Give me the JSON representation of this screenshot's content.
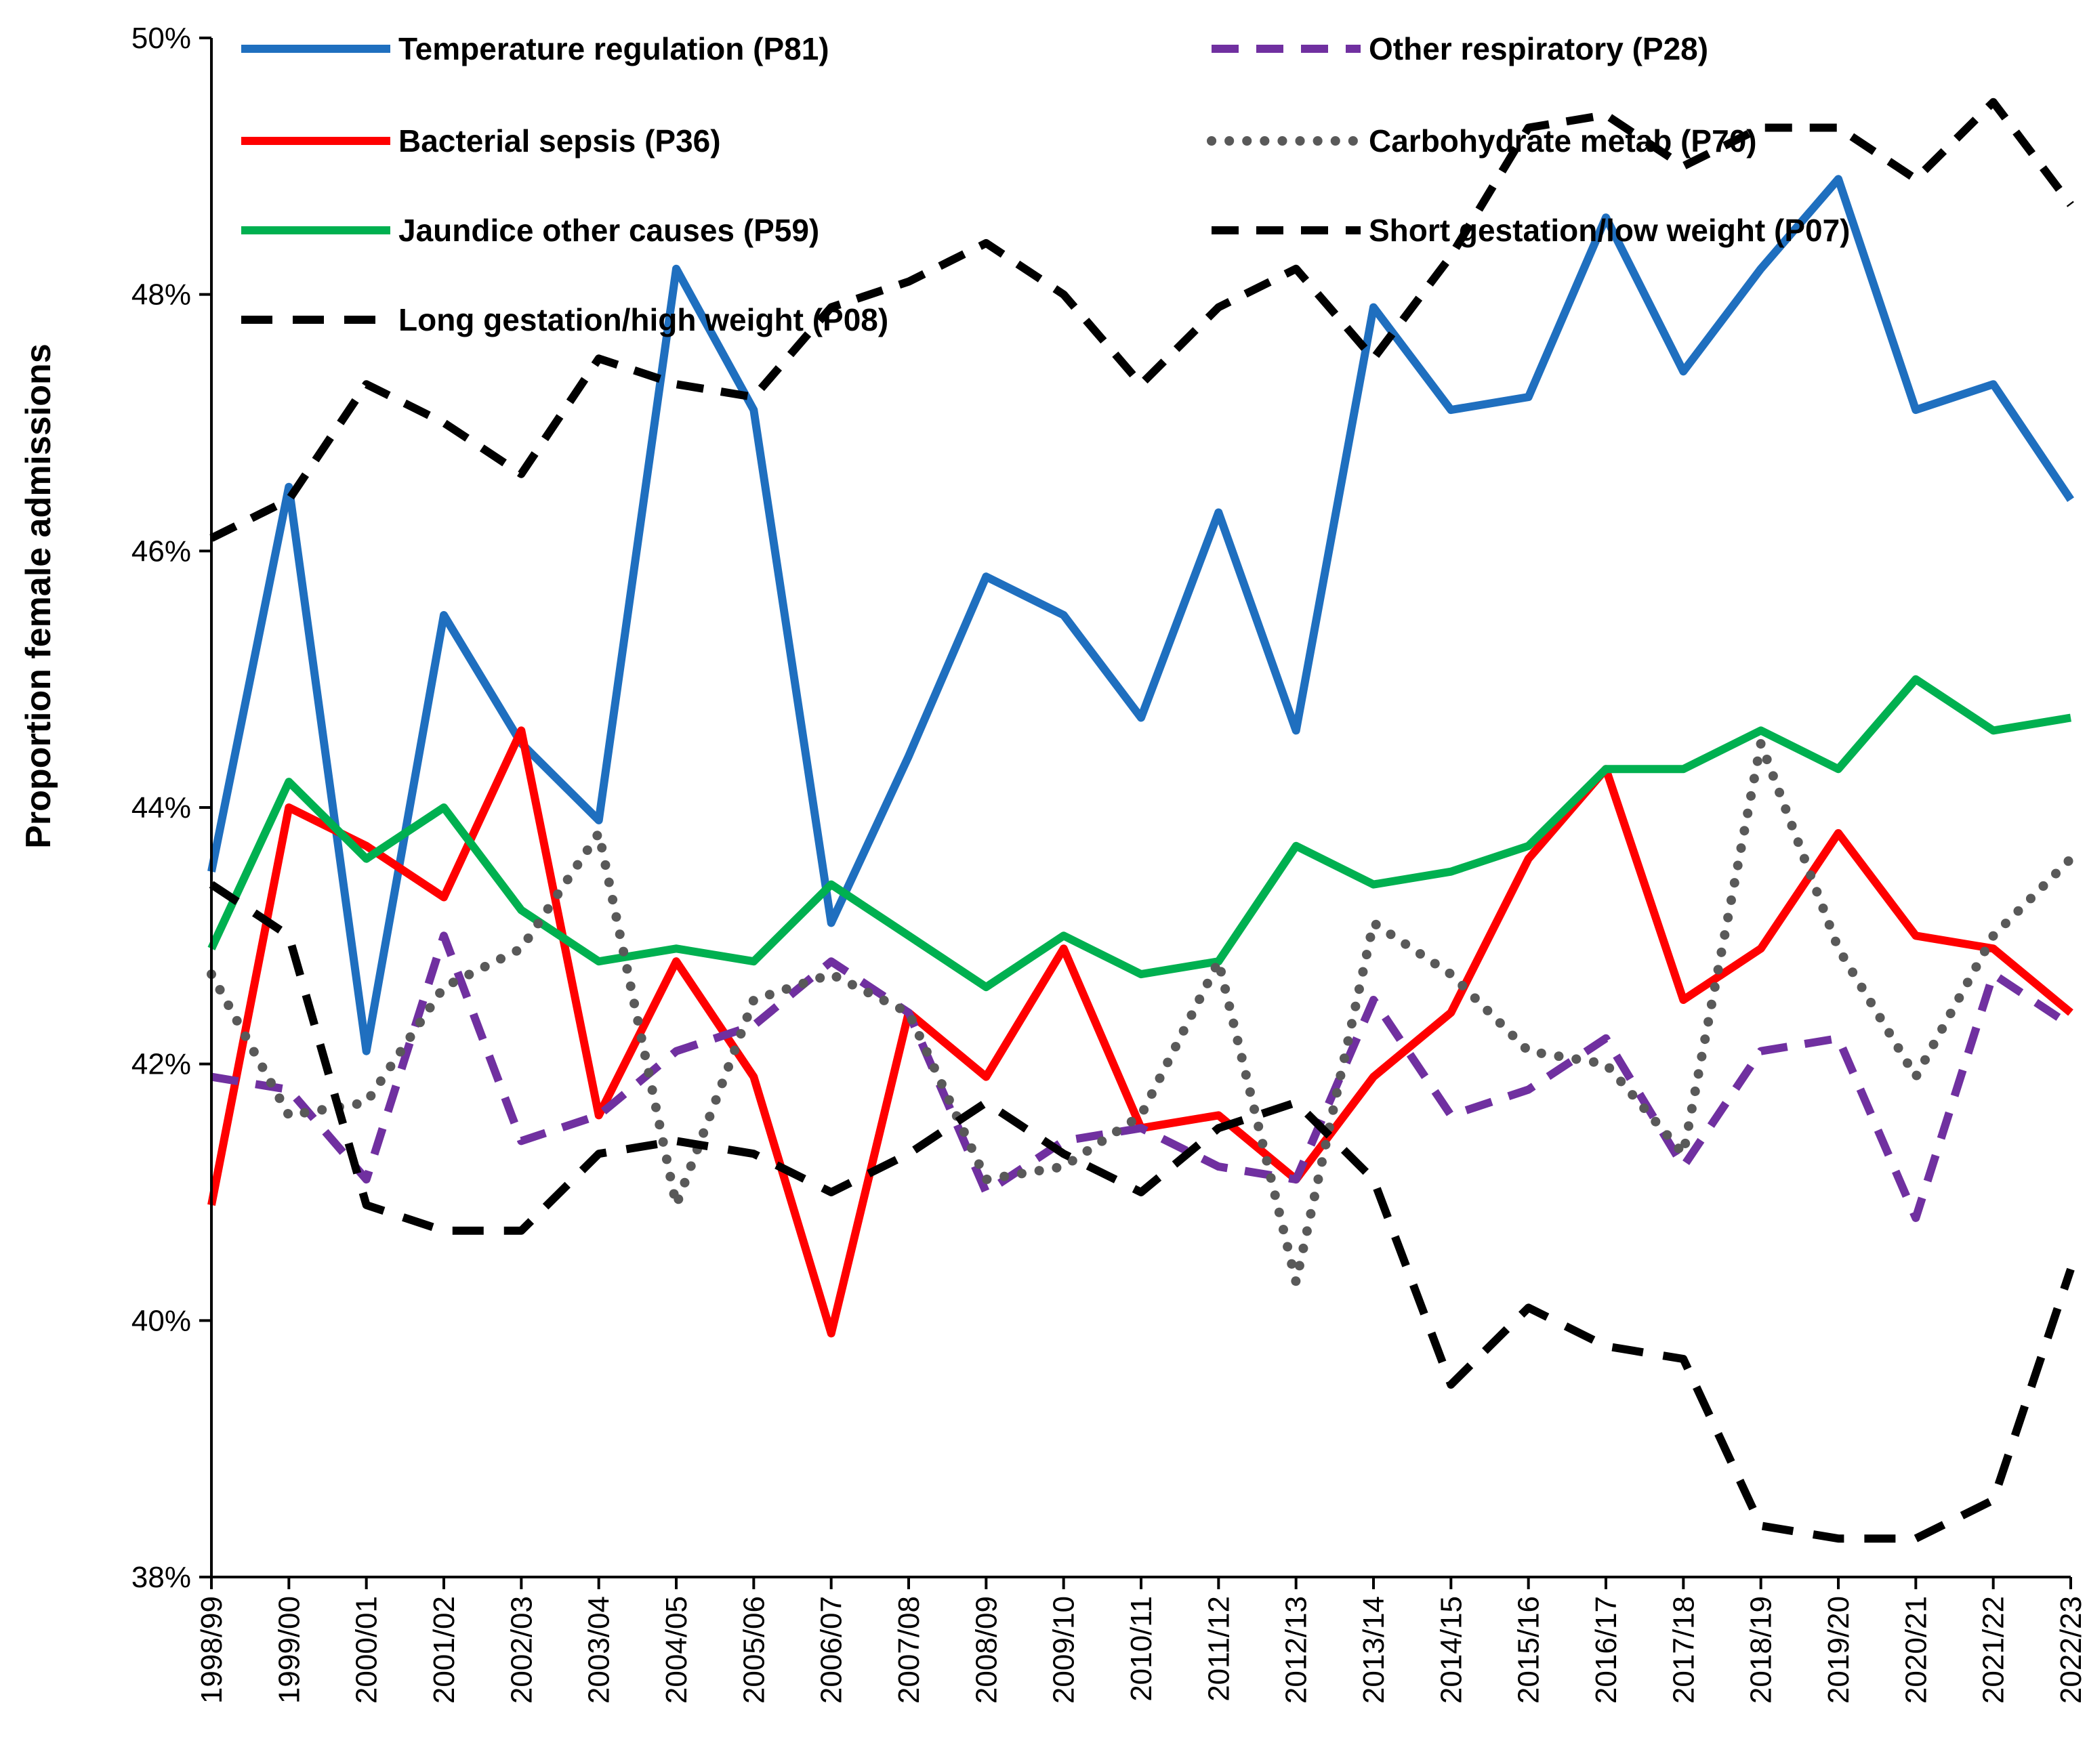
{
  "chart_data": {
    "type": "line",
    "title": "",
    "xlabel": "",
    "ylabel": "Proportion female admissions",
    "ylim": [
      38,
      50
    ],
    "ytick_values": [
      38,
      40,
      42,
      44,
      46,
      48,
      50
    ],
    "ytick_labels": [
      "38%",
      "40%",
      "42%",
      "44%",
      "46%",
      "48%",
      "50%"
    ],
    "categories": [
      "1998/99",
      "1999/00",
      "2000/01",
      "2001/02",
      "2002/03",
      "2003/04",
      "2004/05",
      "2005/06",
      "2006/07",
      "2007/08",
      "2008/09",
      "2009/10",
      "2010/11",
      "2011/12",
      "2012/13",
      "2013/14",
      "2014/15",
      "2015/16",
      "2016/17",
      "2017/18",
      "2018/19",
      "2019/20",
      "2020/21",
      "2021/22",
      "2022/23"
    ],
    "grid": false,
    "legend_position": "top",
    "series": [
      {
        "name": "Temperature regulation (P81)",
        "color": "#1f6fbf",
        "style": "solid",
        "values": [
          43.5,
          46.5,
          42.1,
          45.5,
          44.5,
          43.9,
          48.2,
          47.1,
          43.1,
          44.4,
          45.8,
          45.5,
          44.7,
          46.3,
          44.6,
          47.9,
          47.1,
          47.2,
          48.6,
          47.4,
          48.2,
          48.9,
          47.1,
          47.3,
          46.4
        ]
      },
      {
        "name": "Bacterial sepsis (P36)",
        "color": "#ff0000",
        "style": "solid",
        "values": [
          40.9,
          44.0,
          43.7,
          43.3,
          44.6,
          41.6,
          42.8,
          41.9,
          39.9,
          42.4,
          41.9,
          42.9,
          41.5,
          41.6,
          41.1,
          41.9,
          42.4,
          43.6,
          44.3,
          42.5,
          42.9,
          43.8,
          43.0,
          42.9,
          42.4
        ]
      },
      {
        "name": "Jaundice other causes (P59)",
        "color": "#00b050",
        "style": "solid",
        "values": [
          42.9,
          44.2,
          43.6,
          44.0,
          43.2,
          42.8,
          42.9,
          42.8,
          43.4,
          43.0,
          42.6,
          43.0,
          42.7,
          42.8,
          43.7,
          43.4,
          43.5,
          43.7,
          44.3,
          44.3,
          44.6,
          44.3,
          45.0,
          44.6,
          44.7
        ]
      },
      {
        "name": "Other respiratory (P28)",
        "color": "#7030a0",
        "style": "dash",
        "values": [
          41.9,
          41.8,
          41.1,
          43.0,
          41.4,
          41.6,
          42.1,
          42.3,
          42.8,
          42.4,
          41.0,
          41.4,
          41.5,
          41.2,
          41.1,
          42.5,
          41.6,
          41.8,
          42.2,
          41.2,
          42.1,
          42.2,
          40.8,
          42.7,
          42.3
        ]
      },
      {
        "name": "Carbohydrate metab (P70)",
        "color": "#595959",
        "style": "dot",
        "values": [
          42.7,
          41.6,
          41.7,
          42.6,
          42.9,
          43.8,
          40.9,
          42.5,
          42.7,
          42.4,
          41.1,
          41.2,
          41.6,
          42.8,
          40.3,
          43.1,
          42.7,
          42.1,
          42.0,
          41.3,
          44.5,
          42.9,
          41.9,
          43.0,
          43.6
        ]
      },
      {
        "name": "Short gestation/low weight (P07)",
        "color": "#000000",
        "style": "dash",
        "values": [
          46.1,
          46.4,
          47.3,
          47.0,
          46.6,
          47.5,
          47.3,
          47.2,
          47.9,
          48.1,
          48.4,
          48.0,
          47.3,
          47.9,
          48.2,
          47.5,
          48.3,
          49.3,
          49.4,
          49.0,
          49.3,
          49.3,
          48.9,
          49.5,
          48.7
        ]
      },
      {
        "name": "Long gestation/high weight (P08)",
        "color": "#000000",
        "style": "longdash",
        "values": [
          43.4,
          43.0,
          40.9,
          40.7,
          40.7,
          41.3,
          41.4,
          41.3,
          41.0,
          41.3,
          41.7,
          41.3,
          41.0,
          41.5,
          41.7,
          41.1,
          39.5,
          40.1,
          39.8,
          39.7,
          38.4,
          38.3,
          38.3,
          38.6,
          40.4
        ]
      }
    ]
  }
}
